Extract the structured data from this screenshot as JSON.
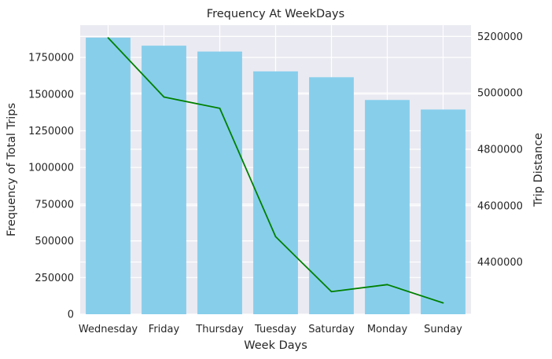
{
  "chart_data": {
    "type": "bar",
    "title": "Frequency At WeekDays",
    "xlabel": "Week Days",
    "ylabel": "Frequency of Total Trips",
    "y2label": "Trip Distance",
    "categories": [
      "Wednesday",
      "Friday",
      "Thursday",
      "Tuesday",
      "Saturday",
      "Monday",
      "Sunday"
    ],
    "series": [
      {
        "type": "bar",
        "axis": "left",
        "values": [
          1885000,
          1830000,
          1790000,
          1655000,
          1615000,
          1460000,
          1395000
        ],
        "color": "#87ceeb"
      },
      {
        "type": "line",
        "axis": "right",
        "values": [
          5195000,
          4985000,
          4945000,
          4490000,
          4295000,
          4320000,
          4255000
        ],
        "color": "#008000"
      }
    ],
    "ylim": [
      0,
      1970000
    ],
    "y2lim": [
      4215000,
      5240000
    ],
    "yticks": [
      0,
      250000,
      500000,
      750000,
      1000000,
      1250000,
      1500000,
      1750000
    ],
    "ytick_labels": [
      "0",
      "250000",
      "500000",
      "750000",
      "1000000",
      "1250000",
      "1500000",
      "1750000"
    ],
    "y2ticks": [
      4400000,
      4600000,
      4800000,
      5000000,
      5200000
    ],
    "y2tick_labels": [
      "4400000",
      "4600000",
      "4800000",
      "5000000",
      "5200000"
    ],
    "grid": true,
    "style": {
      "plot_background": "#eaeaf2",
      "grid_color": "#ffffff"
    }
  }
}
